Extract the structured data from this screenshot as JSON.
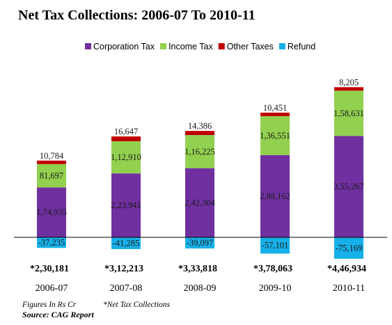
{
  "chart_data": {
    "type": "bar",
    "stacked": true,
    "title": "Net Tax Collections: 2006-07 To 2010-11",
    "categories": [
      "2006-07",
      "2007-08",
      "2008-09",
      "2009-10",
      "2010-11"
    ],
    "series": [
      {
        "name": "Corporation Tax",
        "color": "#7030a0",
        "values": [
          174935,
          223941,
          242304,
          288162,
          355267
        ],
        "labels": [
          "1,74,935",
          "2,23,941",
          "2,42,304",
          "2,88,162",
          "3,55,267"
        ]
      },
      {
        "name": "Income Tax",
        "color": "#92d050",
        "values": [
          81697,
          112910,
          116225,
          136551,
          158631
        ],
        "labels": [
          "81,697",
          "1,12,910",
          "1,16,225",
          "1,36,551",
          "1,58,631"
        ]
      },
      {
        "name": "Other Taxes",
        "color": "#c00000",
        "values": [
          10784,
          16647,
          14386,
          10451,
          8205
        ],
        "labels": [
          "10,784",
          "16,647",
          "14,386",
          "10,451",
          "8,205"
        ]
      },
      {
        "name": "Refund",
        "color": "#17b0e8",
        "values": [
          -37235,
          -41285,
          -39097,
          -57101,
          -75169
        ],
        "labels": [
          "-37,235",
          "-41,285",
          "-39,097",
          "-57,101",
          "-75,169"
        ]
      }
    ],
    "totals": [
      "*2,30,181",
      "*3,12,213",
      "*3,33,818",
      "*3,78,063",
      "*4,46,934"
    ],
    "legend_position": "top",
    "grid": false,
    "xlabel": "",
    "ylabel": ""
  },
  "notes": {
    "units": "Figures In Rs Cr",
    "asterisk": "*Net Tax Collections",
    "source": "Source: CAG Report"
  }
}
